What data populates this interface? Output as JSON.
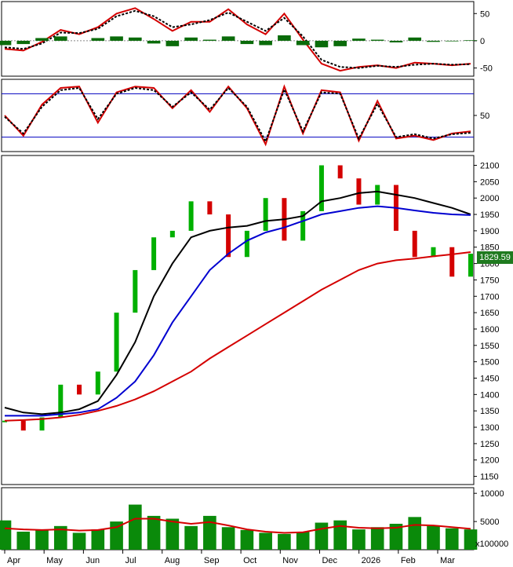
{
  "chart_data": [
    {
      "type": "line",
      "panel": "macd",
      "y_ticks": [
        "50",
        "0",
        "-50"
      ],
      "ylim": [
        -65,
        72
      ],
      "x": [
        0,
        10,
        20,
        30,
        40,
        50,
        60,
        70,
        80,
        90,
        100,
        110,
        120,
        130,
        140,
        150,
        160,
        170,
        180,
        190,
        200,
        210,
        220,
        230,
        240,
        250
      ],
      "series": [
        {
          "color": "#d40000",
          "values": [
            -15,
            -18,
            -2,
            20,
            12,
            25,
            50,
            60,
            40,
            18,
            35,
            35,
            58,
            30,
            12,
            50,
            2,
            -42,
            -55,
            -48,
            -45,
            -50,
            -40,
            -42,
            -45,
            -42
          ]
        },
        {
          "color": "#000000",
          "values": [
            -12,
            -15,
            -5,
            15,
            14,
            22,
            45,
            55,
            45,
            25,
            30,
            38,
            52,
            35,
            18,
            42,
            8,
            -35,
            -48,
            -50,
            -46,
            -48,
            -44,
            -42,
            -44,
            -43
          ]
        },
        {
          "color": "#0a6b0a",
          "type": "histogram",
          "values": [
            -8,
            -6,
            5,
            8,
            0,
            5,
            8,
            6,
            -5,
            -10,
            6,
            2,
            8,
            -6,
            -8,
            10,
            -8,
            -12,
            -10,
            4,
            2,
            -3,
            6,
            -2,
            -1,
            1
          ]
        }
      ],
      "grid_lines": [
        0
      ]
    },
    {
      "type": "line",
      "panel": "stochastic",
      "y_ticks": [
        "50"
      ],
      "ylim": [
        0,
        100
      ],
      "reference_lines": [
        80,
        20
      ],
      "x": [
        0,
        10,
        20,
        30,
        40,
        50,
        60,
        70,
        80,
        90,
        100,
        110,
        120,
        130,
        140,
        150,
        160,
        170,
        180,
        190,
        200,
        210,
        220,
        230,
        240,
        250
      ],
      "series": [
        {
          "color": "#d40000",
          "values": [
            50,
            22,
            65,
            88,
            90,
            40,
            82,
            90,
            88,
            60,
            85,
            55,
            90,
            60,
            10,
            90,
            25,
            85,
            82,
            15,
            70,
            18,
            22,
            16,
            25,
            28
          ]
        },
        {
          "color": "#000000",
          "values": [
            48,
            25,
            62,
            85,
            88,
            45,
            80,
            88,
            85,
            62,
            82,
            58,
            88,
            62,
            14,
            86,
            28,
            82,
            80,
            18,
            66,
            20,
            24,
            18,
            24,
            26
          ]
        }
      ]
    },
    {
      "type": "line",
      "panel": "price",
      "title": "",
      "x_ticks": [
        "Apr",
        "May",
        "Jun",
        "Jul",
        "Aug",
        "Sep",
        "Oct",
        "Nov",
        "Dec",
        "2026",
        "Feb",
        "Mar"
      ],
      "y_ticks": [
        "2100",
        "2050",
        "2000",
        "1950",
        "1900",
        "1850",
        "1800",
        "1750",
        "1700",
        "1650",
        "1600",
        "1550",
        "1500",
        "1450",
        "1400",
        "1350",
        "1300",
        "1250",
        "1200",
        "1150"
      ],
      "ylim": [
        1125,
        2130
      ],
      "last_price": "1829.59",
      "x": [
        0,
        10,
        20,
        30,
        40,
        50,
        60,
        70,
        80,
        90,
        100,
        110,
        120,
        130,
        140,
        150,
        160,
        170,
        180,
        190,
        200,
        210,
        220,
        230,
        240,
        250
      ],
      "series": [
        {
          "type": "candlestick-close",
          "color": "#00b000",
          "values": [
            1320,
            1290,
            1330,
            1430,
            1400,
            1470,
            1650,
            1780,
            1880,
            1900,
            1990,
            1950,
            1820,
            1900,
            2000,
            1870,
            1960,
            2100,
            2060,
            1980,
            2040,
            1900,
            1820,
            1850,
            1760,
            1830
          ]
        },
        {
          "color": "#000000",
          "values": [
            1360,
            1345,
            1340,
            1345,
            1355,
            1380,
            1460,
            1560,
            1700,
            1800,
            1880,
            1900,
            1910,
            1915,
            1930,
            1935,
            1945,
            1990,
            2000,
            2015,
            2020,
            2010,
            2000,
            1985,
            1970,
            1950
          ]
        },
        {
          "color": "#0000d0",
          "values": [
            1335,
            1335,
            1335,
            1340,
            1345,
            1355,
            1390,
            1440,
            1520,
            1620,
            1700,
            1780,
            1830,
            1870,
            1895,
            1910,
            1930,
            1950,
            1960,
            1970,
            1975,
            1970,
            1962,
            1955,
            1950,
            1948
          ]
        },
        {
          "color": "#d40000",
          "values": [
            1320,
            1322,
            1325,
            1330,
            1338,
            1350,
            1365,
            1385,
            1410,
            1440,
            1470,
            1510,
            1545,
            1580,
            1615,
            1650,
            1685,
            1720,
            1750,
            1780,
            1800,
            1810,
            1815,
            1822,
            1828,
            1835
          ]
        }
      ]
    },
    {
      "type": "bar",
      "panel": "volume",
      "y_ticks": [
        "10000",
        "5000"
      ],
      "unit_label": "x100000",
      "ylim": [
        0,
        11000
      ],
      "x": [
        0,
        10,
        20,
        30,
        40,
        50,
        60,
        70,
        80,
        90,
        100,
        110,
        120,
        130,
        140,
        150,
        160,
        170,
        180,
        190,
        200,
        210,
        220,
        230,
        240,
        250
      ],
      "series": [
        {
          "color": "#0a8a0a",
          "type": "bar",
          "values": [
            5200,
            3200,
            3500,
            4200,
            3000,
            3600,
            5000,
            8000,
            6000,
            5500,
            4200,
            6000,
            4000,
            3500,
            3000,
            2800,
            3200,
            4800,
            5200,
            3600,
            4000,
            4600,
            5800,
            4200,
            3800,
            3600
          ]
        },
        {
          "color": "#d40000",
          "values": [
            3800,
            3600,
            3500,
            3600,
            3400,
            3500,
            4000,
            5500,
            5500,
            5000,
            4600,
            4900,
            4300,
            3600,
            3200,
            3000,
            3100,
            3700,
            4200,
            3900,
            3800,
            3900,
            4400,
            4300,
            4000,
            3700
          ]
        }
      ]
    }
  ]
}
